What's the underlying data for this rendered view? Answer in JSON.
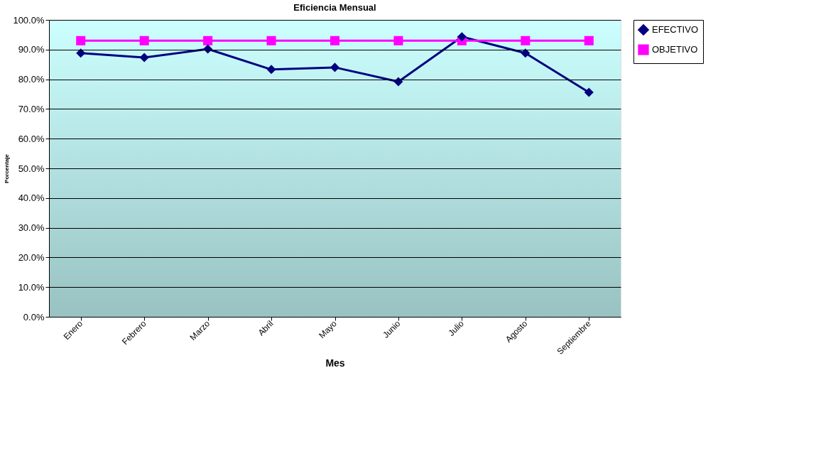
{
  "chart_data": {
    "type": "line",
    "title": "Eficiencia Mensual",
    "xlabel": "Mes",
    "ylabel": "Porcentaje",
    "categories": [
      "Enero",
      "Febrero",
      "Marzo",
      "Abril",
      "Mayo",
      "Junio",
      "Julio",
      "Agosto",
      "Septiembre"
    ],
    "series": [
      {
        "name": "EFECTIVO",
        "color": "#000080",
        "marker": "diamond",
        "values": [
          88.8,
          87.3,
          90.2,
          83.3,
          84.0,
          79.2,
          94.3,
          88.8,
          75.6
        ]
      },
      {
        "name": "OBJETIVO",
        "color": "#ff00ff",
        "marker": "square",
        "values": [
          93,
          93,
          93,
          93,
          93,
          93,
          93,
          93,
          93
        ]
      }
    ],
    "ylim": [
      0,
      100
    ],
    "yticks": [
      {
        "value": 0,
        "label": "0.0%"
      },
      {
        "value": 10,
        "label": "10.0%"
      },
      {
        "value": 20,
        "label": "20.0%"
      },
      {
        "value": 30,
        "label": "30.0%"
      },
      {
        "value": 40,
        "label": "40.0%"
      },
      {
        "value": 50,
        "label": "50.0%"
      },
      {
        "value": 60,
        "label": "60.0%"
      },
      {
        "value": 70,
        "label": "70.0%"
      },
      {
        "value": 80,
        "label": "80.0%"
      },
      {
        "value": 90,
        "label": "90.0%"
      },
      {
        "value": 100,
        "label": "100.0%"
      }
    ],
    "grid": "y",
    "legend": "right",
    "line_style": "solid"
  }
}
